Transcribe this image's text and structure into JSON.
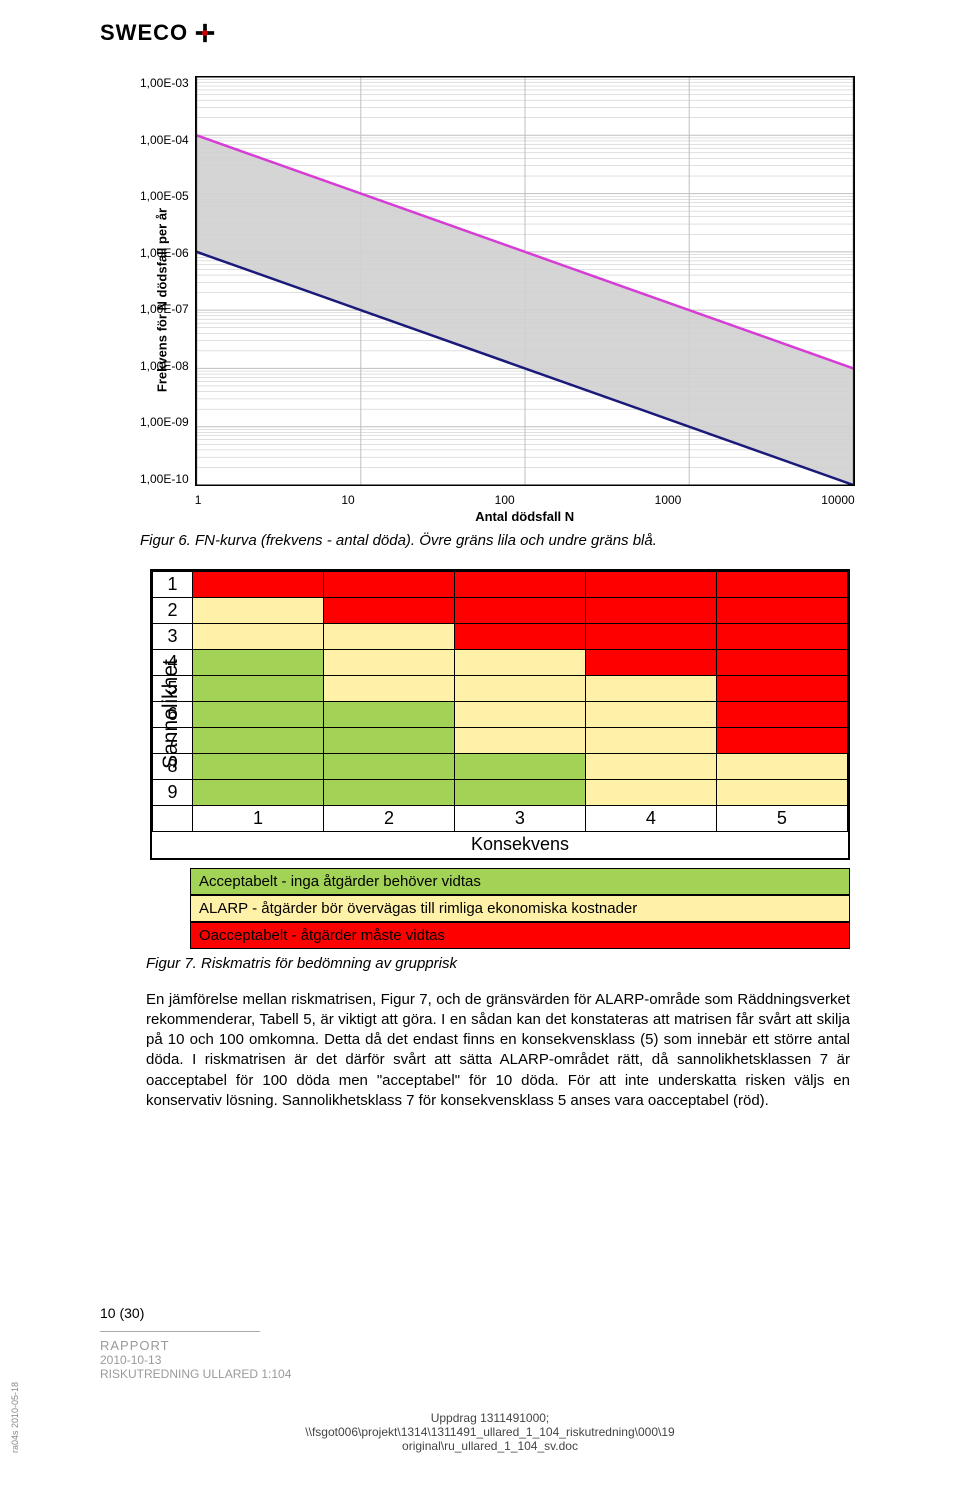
{
  "header": {
    "logo_text": "SWECO"
  },
  "fn_chart": {
    "type": "line-log-log",
    "ylabel": "Frekvens för N dödsfall per år",
    "xlabel": "Antal dödsfall N",
    "y_ticks": [
      "1,00E-03",
      "1,00E-04",
      "1,00E-05",
      "1,00E-06",
      "1,00E-07",
      "1,00E-08",
      "1,00E-09",
      "1,00E-10"
    ],
    "y_values": [
      0.001,
      0.0001,
      1e-05,
      1e-06,
      1e-07,
      1e-08,
      1e-09,
      1e-10
    ],
    "x_ticks": [
      "1",
      "10",
      "100",
      "1000",
      "10000"
    ],
    "x_values": [
      1,
      10,
      100,
      1000,
      10000
    ],
    "xlim": [
      1,
      10000
    ],
    "ylim": [
      1e-10,
      0.001
    ],
    "band_fill": "#d0d0d0",
    "upper_line_color": "#d63cd6",
    "lower_line_color": "#1a1a7a",
    "line_width": 2.5,
    "grid_color": "#bfbfbf",
    "background_color": "#ffffff",
    "upper_line": [
      [
        1,
        0.0001
      ],
      [
        10000,
        1e-08
      ]
    ],
    "lower_line": [
      [
        1,
        1e-06
      ],
      [
        10000,
        1e-10
      ]
    ],
    "label_fontsize": 13,
    "tick_fontsize": 12,
    "caption": "Figur 6. FN-kurva (frekvens - antal döda). Övre gräns lila och undre gräns blå."
  },
  "risk_matrix": {
    "type": "heatmap",
    "ylabel": "Sannolikhet",
    "xlabel": "Konsekvens",
    "rows": [
      "1",
      "2",
      "3",
      "4",
      "5",
      "6",
      "7",
      "8",
      "9"
    ],
    "cols": [
      "1",
      "2",
      "3",
      "4",
      "5"
    ],
    "cell_colors": [
      [
        "#ff0000",
        "#ff0000",
        "#ff0000",
        "#ff0000",
        "#ff0000"
      ],
      [
        "#fff2a8",
        "#ff0000",
        "#ff0000",
        "#ff0000",
        "#ff0000"
      ],
      [
        "#fff2a8",
        "#fff2a8",
        "#ff0000",
        "#ff0000",
        "#ff0000"
      ],
      [
        "#a2d356",
        "#fff2a8",
        "#fff2a8",
        "#ff0000",
        "#ff0000"
      ],
      [
        "#a2d356",
        "#fff2a8",
        "#fff2a8",
        "#fff2a8",
        "#ff0000"
      ],
      [
        "#a2d356",
        "#a2d356",
        "#fff2a8",
        "#fff2a8",
        "#ff0000"
      ],
      [
        "#a2d356",
        "#a2d356",
        "#fff2a8",
        "#fff2a8",
        "#ff0000"
      ],
      [
        "#a2d356",
        "#a2d356",
        "#a2d356",
        "#fff2a8",
        "#fff2a8"
      ],
      [
        "#a2d356",
        "#a2d356",
        "#a2d356",
        "#fff2a8",
        "#fff2a8"
      ]
    ],
    "colors": {
      "green": "#a2d356",
      "yellow": "#fff2a8",
      "red": "#ff0000"
    },
    "border_color": "#000000",
    "label_fontsize": 21,
    "cell_fontsize": 18,
    "legend": [
      {
        "color": "#a2d356",
        "text": "Acceptabelt - inga åtgärder behöver vidtas"
      },
      {
        "color": "#fff2a8",
        "text": "ALARP - åtgärder bör övervägas till rimliga ekonomiska kostnader"
      },
      {
        "color": "#ff0000",
        "text": "Oacceptabelt - åtgärder måste  vidtas"
      }
    ],
    "caption": "Figur 7. Riskmatris för bedömning av grupprisk"
  },
  "paragraph": {
    "text": "En jämförelse mellan riskmatrisen, Figur 7, och de gränsvärden för ALARP-område som Räddningsverket rekommenderar, Tabell 5, är viktigt att göra. I en sådan kan det konstateras att matrisen får svårt att skilja på 10 och 100 omkomna. Detta då det endast finns en konsekvensklass (5) som innebär ett större antal döda. I riskmatrisen är det därför svårt att sätta ALARP-området rätt, då sannolikhetsklassen 7 är oacceptabel för 100 döda men \"acceptabel\" för 10 döda. För att inte underskatta risken väljs en konservativ lösning. Sannolikhetsklass 7 för konsekvensklass 5 anses vara oacceptabel (röd)."
  },
  "footer": {
    "page": "10 (30)",
    "rapport": "RAPPORT",
    "date": "2010-10-13",
    "title": "RISKUTREDNING ULLARED 1:104",
    "side": "ra04s 2010-05-18",
    "path1": "Uppdrag 1311491000;",
    "path2": "\\\\fsgot006\\projekt\\1314\\1311491_ullared_1_104_riskutredning\\000\\19",
    "path3": "original\\ru_ullared_1_104_sv.doc"
  }
}
